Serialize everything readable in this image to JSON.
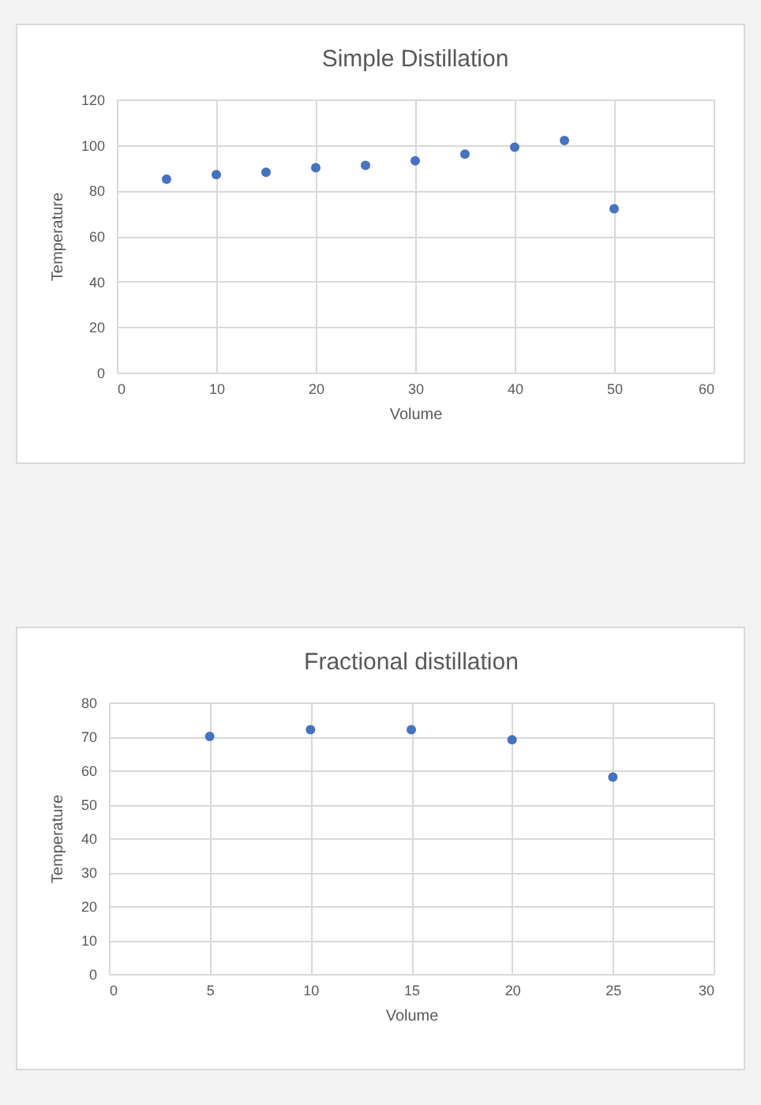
{
  "chart_data": [
    {
      "type": "scatter",
      "title": "Simple Distillation",
      "xlabel": "Volume",
      "ylabel": "Temperature",
      "x": [
        5,
        10,
        15,
        20,
        25,
        30,
        35,
        40,
        45,
        50
      ],
      "series": [
        {
          "color": "#4472c4",
          "values": [
            85,
            87,
            88,
            90,
            91,
            93,
            96,
            99,
            102,
            72
          ]
        }
      ],
      "xlim": [
        0,
        60
      ],
      "xticks": [
        0,
        10,
        20,
        30,
        40,
        50,
        60
      ],
      "ylim": [
        0,
        120
      ],
      "yticks": [
        0,
        20,
        40,
        60,
        80,
        100,
        120
      ],
      "grid": true,
      "marker": "circle"
    },
    {
      "type": "scatter",
      "title": "Fractional distillation",
      "xlabel": "Volume",
      "ylabel": "Temperature",
      "x": [
        5,
        10,
        15,
        20,
        25
      ],
      "series": [
        {
          "color": "#4472c4",
          "values": [
            70,
            72,
            72,
            69,
            58
          ]
        }
      ],
      "xlim": [
        0,
        30
      ],
      "xticks": [
        0,
        5,
        10,
        15,
        20,
        25,
        30
      ],
      "ylim": [
        0,
        80
      ],
      "yticks": [
        0,
        10,
        20,
        30,
        40,
        50,
        60,
        70,
        80
      ],
      "grid": true,
      "marker": "circle"
    }
  ]
}
